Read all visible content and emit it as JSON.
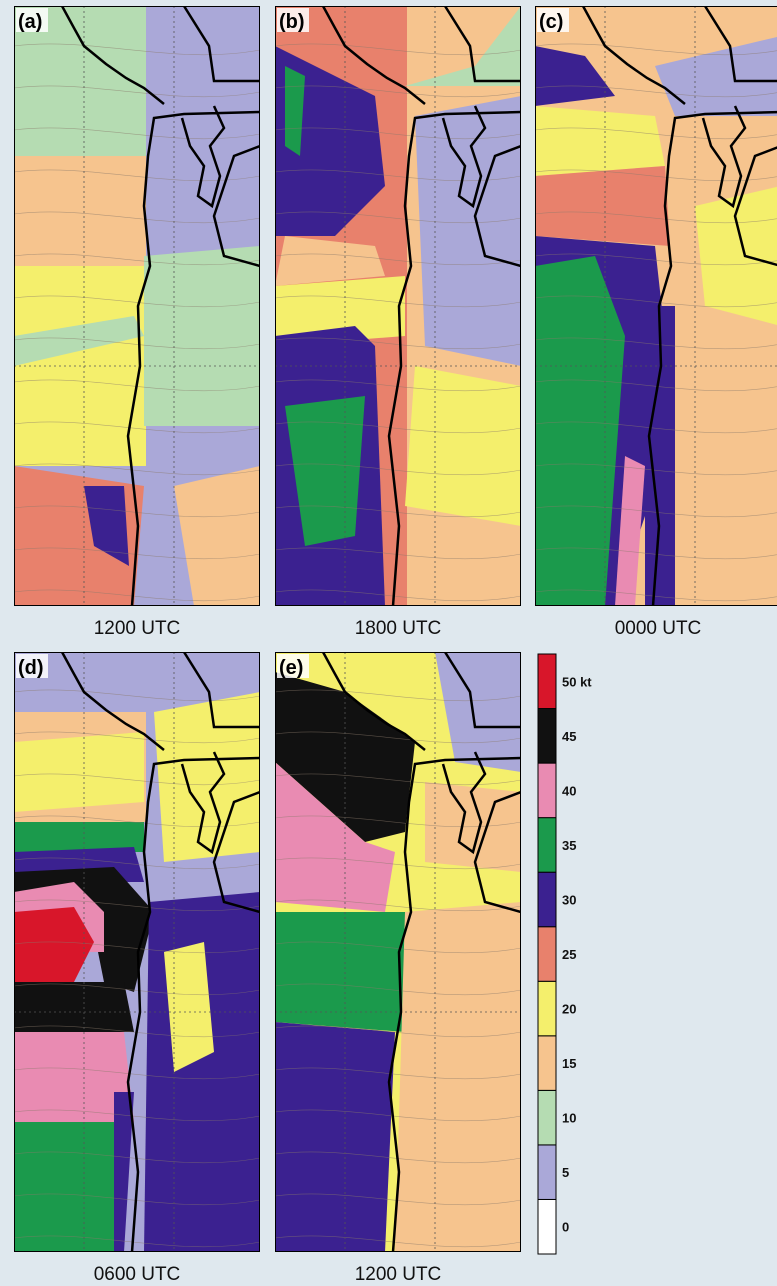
{
  "panels": [
    {
      "label": "(a)",
      "time": "1200 UTC"
    },
    {
      "label": "(b)",
      "time": "1800 UTC"
    },
    {
      "label": "(c)",
      "time": "0000 UTC"
    },
    {
      "label": "(d)",
      "time": "0600 UTC"
    },
    {
      "label": "(e)",
      "time": "1200 UTC"
    }
  ],
  "colorbar": {
    "labels": [
      "0",
      "5",
      "10",
      "15",
      "20",
      "25",
      "30",
      "35",
      "40",
      "45",
      "50 kt"
    ],
    "colors": [
      "#ffffff",
      "#aaa8d8",
      "#b5dcb2",
      "#f6c48e",
      "#f4ef6c",
      "#e8816c",
      "#3b2190",
      "#1b9a4c",
      "#e98bb2",
      "#111111",
      "#d8162a"
    ]
  }
}
